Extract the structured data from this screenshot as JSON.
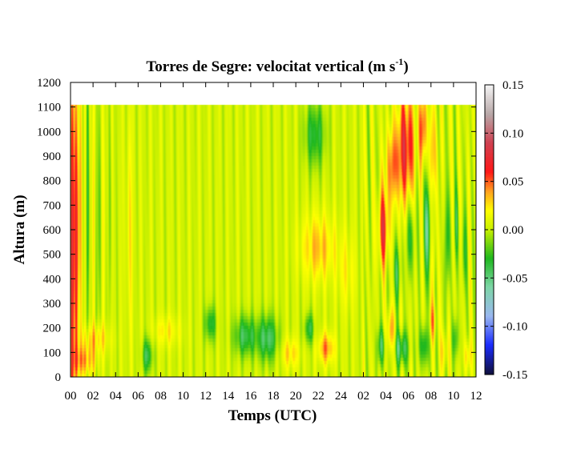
{
  "chart_data": {
    "type": "heatmap",
    "title": "Torres de Segre: velocitat vertical (m s",
    "title_superscript": "-1",
    "title_suffix": ")",
    "xlabel": "Temps (UTC)",
    "ylabel": "Altura (m)",
    "x_tick_labels": [
      "00",
      "02",
      "04",
      "06",
      "08",
      "10",
      "12",
      "14",
      "16",
      "18",
      "20",
      "22",
      "24",
      "02",
      "04",
      "06",
      "08",
      "10",
      "12"
    ],
    "y_tick_labels": [
      "0",
      "100",
      "200",
      "300",
      "400",
      "500",
      "600",
      "700",
      "800",
      "900",
      "1000",
      "1100",
      "1200"
    ],
    "ylim": [
      0,
      1200
    ],
    "x_range_hours": [
      0,
      36
    ],
    "colorbar": {
      "range": [
        -0.15,
        0.15
      ],
      "tick_labels": [
        "-0.15",
        "-0.10",
        "-0.05",
        "0.00",
        "0.05",
        "0.10",
        "0.15"
      ],
      "stops": [
        {
          "value": -0.15,
          "color": "#101040"
        },
        {
          "value": -0.12,
          "color": "#1a2cff"
        },
        {
          "value": -0.09,
          "color": "#9ab8f0"
        },
        {
          "value": -0.06,
          "color": "#7ed6a8"
        },
        {
          "value": -0.03,
          "color": "#1fb81f"
        },
        {
          "value": 0.0,
          "color": "#c8f000"
        },
        {
          "value": 0.02,
          "color": "#ffff00"
        },
        {
          "value": 0.04,
          "color": "#ffa020"
        },
        {
          "value": 0.06,
          "color": "#ff1818"
        },
        {
          "value": 0.09,
          "color": "#d04050"
        },
        {
          "value": 0.12,
          "color": "#b8a8a8"
        },
        {
          "value": 0.15,
          "color": "#f4f4f4"
        }
      ]
    },
    "data_top_height_m": 1110,
    "base_value": 0.004,
    "features": [
      {
        "t": 0.25,
        "z": 550,
        "dt": 0.4,
        "dz": 700,
        "v": 0.062
      },
      {
        "t": 0.7,
        "z": 650,
        "dt": 0.18,
        "dz": 500,
        "v": 0.035
      },
      {
        "t": 1.2,
        "z": 60,
        "dt": 1.0,
        "dz": 60,
        "v": 0.035
      },
      {
        "t": 2.2,
        "z": 150,
        "dt": 1.2,
        "dz": 60,
        "v": 0.025
      },
      {
        "t": 1.5,
        "z": 700,
        "dt": 0.15,
        "dz": 450,
        "v": -0.025
      },
      {
        "t": 2.0,
        "z": 750,
        "dt": 0.12,
        "dz": 450,
        "v": 0.015
      },
      {
        "t": 2.5,
        "z": 650,
        "dt": 0.15,
        "dz": 450,
        "v": -0.022
      },
      {
        "t": 3.0,
        "z": 700,
        "dt": 0.12,
        "dz": 450,
        "v": 0.015
      },
      {
        "t": 3.5,
        "z": 650,
        "dt": 0.15,
        "dz": 450,
        "v": -0.015
      },
      {
        "t": 5.2,
        "z": 600,
        "dt": 0.3,
        "dz": 400,
        "v": 0.018
      },
      {
        "t": 6.8,
        "z": 80,
        "dt": 0.45,
        "dz": 70,
        "v": -0.045
      },
      {
        "t": 8.5,
        "z": 180,
        "dt": 1.2,
        "dz": 60,
        "v": 0.018
      },
      {
        "t": 12.4,
        "z": 210,
        "dt": 0.5,
        "dz": 70,
        "v": -0.04
      },
      {
        "t": 15.5,
        "z": 160,
        "dt": 1.0,
        "dz": 80,
        "v": -0.045
      },
      {
        "t": 17.5,
        "z": 150,
        "dt": 0.9,
        "dz": 90,
        "v": -0.05
      },
      {
        "t": 21.2,
        "z": 190,
        "dt": 0.45,
        "dz": 60,
        "v": -0.04
      },
      {
        "t": 22.7,
        "z": 110,
        "dt": 0.7,
        "dz": 60,
        "v": 0.04
      },
      {
        "t": 19.5,
        "z": 90,
        "dt": 0.8,
        "dz": 60,
        "v": 0.025
      },
      {
        "t": 22.0,
        "z": 520,
        "dt": 1.5,
        "dz": 130,
        "v": 0.03
      },
      {
        "t": 21.7,
        "z": 980,
        "dt": 0.9,
        "dz": 130,
        "v": -0.04
      },
      {
        "t": 24.5,
        "z": 420,
        "dt": 0.8,
        "dz": 150,
        "v": 0.015
      },
      {
        "t": 27.8,
        "z": 600,
        "dt": 0.45,
        "dz": 150,
        "v": 0.06
      },
      {
        "t": 29.8,
        "z": 930,
        "dt": 0.75,
        "dz": 220,
        "v": 0.065
      },
      {
        "t": 28.6,
        "z": 850,
        "dt": 0.6,
        "dz": 150,
        "v": 0.04
      },
      {
        "t": 31.3,
        "z": 1010,
        "dt": 0.35,
        "dz": 140,
        "v": 0.05
      },
      {
        "t": 32.2,
        "z": 900,
        "dt": 0.35,
        "dz": 200,
        "v": 0.03
      },
      {
        "t": 27.6,
        "z": 120,
        "dt": 0.35,
        "dz": 80,
        "v": -0.045
      },
      {
        "t": 28.4,
        "z": 180,
        "dt": 0.35,
        "dz": 90,
        "v": 0.035
      },
      {
        "t": 29.4,
        "z": 110,
        "dt": 0.6,
        "dz": 70,
        "v": -0.05
      },
      {
        "t": 31.4,
        "z": 120,
        "dt": 0.45,
        "dz": 80,
        "v": -0.04
      },
      {
        "t": 32.2,
        "z": 220,
        "dt": 0.3,
        "dz": 80,
        "v": 0.03
      },
      {
        "t": 29.0,
        "z": 420,
        "dt": 0.35,
        "dz": 120,
        "v": -0.035
      },
      {
        "t": 30.2,
        "z": 560,
        "dt": 0.35,
        "dz": 150,
        "v": -0.035
      },
      {
        "t": 31.7,
        "z": 600,
        "dt": 0.3,
        "dz": 200,
        "v": -0.055
      },
      {
        "t": 32.3,
        "z": 500,
        "dt": 0.15,
        "dz": 200,
        "v": 0.02
      },
      {
        "t": 33.5,
        "z": 550,
        "dt": 0.25,
        "dz": 200,
        "v": -0.035
      },
      {
        "t": 34.3,
        "z": 620,
        "dt": 0.2,
        "dz": 150,
        "v": -0.03
      },
      {
        "t": 35.0,
        "z": 500,
        "dt": 0.25,
        "dz": 150,
        "v": -0.025
      },
      {
        "t": 33.2,
        "z": 100,
        "dt": 0.35,
        "dz": 80,
        "v": 0.02
      },
      {
        "t": 34.2,
        "z": 150,
        "dt": 0.3,
        "dz": 80,
        "v": -0.03
      },
      {
        "t": 35.3,
        "z": 80,
        "dt": 0.3,
        "dz": 60,
        "v": 0.025
      }
    ]
  }
}
